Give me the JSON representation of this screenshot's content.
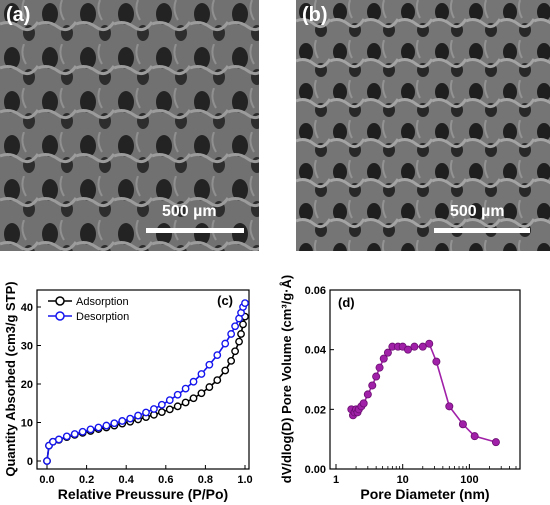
{
  "panels": {
    "a": {
      "tag": "(a)",
      "scale_label": "500 µm"
    },
    "b": {
      "tag": "(b)",
      "scale_label": "500 µm"
    }
  },
  "chart_data": [
    {
      "type": "line",
      "panel_label": "(c)",
      "xlabel": "Relative Preussure (P/Po)",
      "ylabel": "Quantity Absorbed (cm3/g STP)",
      "xlim": [
        0.0,
        1.0
      ],
      "ylim": [
        0,
        40
      ],
      "xticks": [
        "0.0",
        "0.2",
        "0.4",
        "0.6",
        "0.8",
        "1.0"
      ],
      "yticks": [
        "0",
        "10",
        "20",
        "30",
        "40"
      ],
      "legend_position": "top-left",
      "series": [
        {
          "name": "Adsorption",
          "color": "#000000",
          "x": [
            0.0,
            0.01,
            0.03,
            0.06,
            0.1,
            0.14,
            0.18,
            0.22,
            0.26,
            0.3,
            0.34,
            0.38,
            0.42,
            0.46,
            0.5,
            0.54,
            0.58,
            0.62,
            0.66,
            0.7,
            0.74,
            0.78,
            0.82,
            0.86,
            0.9,
            0.93,
            0.95,
            0.97,
            0.98,
            0.99,
            1.0
          ],
          "y": [
            0,
            4,
            5,
            5.5,
            6.2,
            6.8,
            7.3,
            7.8,
            8.3,
            8.7,
            9.2,
            9.7,
            10.2,
            10.8,
            11.4,
            12.0,
            12.7,
            13.4,
            14.2,
            15.2,
            16.3,
            17.6,
            19.2,
            21.0,
            23.5,
            26,
            28.5,
            31,
            33,
            35.5,
            37.5
          ]
        },
        {
          "name": "Desorption",
          "color": "#1515ee",
          "x": [
            0.0,
            0.01,
            0.03,
            0.06,
            0.1,
            0.14,
            0.18,
            0.22,
            0.26,
            0.3,
            0.34,
            0.38,
            0.42,
            0.46,
            0.5,
            0.54,
            0.58,
            0.62,
            0.66,
            0.7,
            0.74,
            0.78,
            0.82,
            0.86,
            0.9,
            0.93,
            0.95,
            0.97,
            0.98,
            0.99,
            1.0
          ],
          "y": [
            0,
            4,
            5,
            5.6,
            6.4,
            7.0,
            7.6,
            8.2,
            8.7,
            9.2,
            9.8,
            10.4,
            11.0,
            11.8,
            12.6,
            13.5,
            14.6,
            15.8,
            17.2,
            18.8,
            20.6,
            22.6,
            25.0,
            27.5,
            30.5,
            33,
            35,
            37,
            38.5,
            40,
            41
          ]
        }
      ]
    },
    {
      "type": "line",
      "panel_label": "(d)",
      "xlabel": "Pore Diameter (nm)",
      "ylabel": "dV/dlog(D) Pore Volume (cm³/g·Å)",
      "xscale": "log",
      "xlim": [
        1,
        500
      ],
      "ylim": [
        0.0,
        0.06
      ],
      "xticks": [
        "1",
        "10",
        "100"
      ],
      "yticks": [
        "0.00",
        "0.02",
        "0.04",
        "0.06"
      ],
      "series": [
        {
          "color": "#a020a8",
          "x": [
            1.7,
            1.8,
            1.9,
            2.0,
            2.1,
            2.2,
            2.4,
            2.6,
            3.0,
            3.5,
            4.0,
            4.5,
            5.2,
            6.0,
            7.0,
            8.5,
            10,
            12,
            15,
            20,
            25,
            32,
            50,
            80,
            120,
            250
          ],
          "y": [
            0.02,
            0.018,
            0.019,
            0.02,
            0.019,
            0.02,
            0.021,
            0.022,
            0.025,
            0.028,
            0.031,
            0.034,
            0.037,
            0.039,
            0.041,
            0.041,
            0.041,
            0.04,
            0.041,
            0.041,
            0.042,
            0.036,
            0.021,
            0.015,
            0.011,
            0.009
          ]
        }
      ]
    }
  ]
}
